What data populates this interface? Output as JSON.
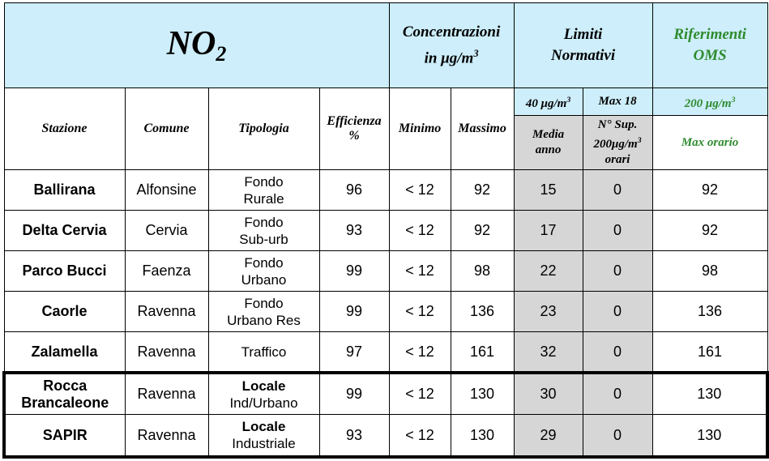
{
  "header": {
    "title_main": "NO",
    "title_sub": "2",
    "concentrazioni_line1": "Concentrazioni",
    "concentrazioni_line2": "in μg/m",
    "concentrazioni_sup": "3",
    "limiti_line1": "Limiti",
    "limiti_line2": "Normativi",
    "oms_line1": "Riferimenti",
    "oms_line2": "OMS",
    "limit1_value": "40 μg/m",
    "limit1_sup": "3",
    "limit2_value": "Max 18",
    "oms_value": "200 μg/m",
    "oms_sup": "3"
  },
  "columns": {
    "stazione": "Stazione",
    "comune": "Comune",
    "tipologia": "Tipologia",
    "efficienza_line1": "Efficienza",
    "efficienza_line2": "%",
    "minimo": "Minimo",
    "massimo": "Massimo",
    "media_line1": "Media",
    "media_line2": "anno",
    "sup_line1": "N° Sup.",
    "sup_line2": "200μg/m",
    "sup_sup": "3",
    "sup_line3": "orari",
    "max_orario": "Max orario"
  },
  "rows": [
    {
      "stazione_l1": "Ballirana",
      "stazione_l2": "",
      "comune": "Alfonsine",
      "tipologia_l1": "Fondo",
      "tipologia_l2": "Rurale",
      "efficienza": "96",
      "minimo": "< 12",
      "massimo": "92",
      "media": "15",
      "superamenti": "0",
      "max_orario": "92"
    },
    {
      "stazione_l1": "Delta Cervia",
      "stazione_l2": "",
      "comune": "Cervia",
      "tipologia_l1": "Fondo",
      "tipologia_l2": "Sub-urb",
      "efficienza": "93",
      "minimo": "< 12",
      "massimo": "92",
      "media": "17",
      "superamenti": "0",
      "max_orario": "92"
    },
    {
      "stazione_l1": "Parco Bucci",
      "stazione_l2": "",
      "comune": "Faenza",
      "tipologia_l1": "Fondo",
      "tipologia_l2": "Urbano",
      "efficienza": "99",
      "minimo": "< 12",
      "massimo": "98",
      "media": "22",
      "superamenti": "0",
      "max_orario": "98"
    },
    {
      "stazione_l1": "Caorle",
      "stazione_l2": "",
      "comune": "Ravenna",
      "tipologia_l1": "Fondo",
      "tipologia_l2": "Urbano Res",
      "efficienza": "99",
      "minimo": "< 12",
      "massimo": "136",
      "media": "23",
      "superamenti": "0",
      "max_orario": "136"
    },
    {
      "stazione_l1": "Zalamella",
      "stazione_l2": "",
      "comune": "Ravenna",
      "tipologia_l1": "Traffico",
      "tipologia_l2": "",
      "efficienza": "97",
      "minimo": "< 12",
      "massimo": "161",
      "media": "32",
      "superamenti": "0",
      "max_orario": "161"
    },
    {
      "stazione_l1": "Rocca",
      "stazione_l2": "Brancaleone",
      "comune": "Ravenna",
      "tipologia_l1": "Locale",
      "tipologia_l2": "Ind/Urbano",
      "efficienza": "99",
      "minimo": "< 12",
      "massimo": "130",
      "media": "30",
      "superamenti": "0",
      "max_orario": "130"
    },
    {
      "stazione_l1": "SAPIR",
      "stazione_l2": "",
      "comune": "Ravenna",
      "tipologia_l1": "Locale",
      "tipologia_l2": "Industriale",
      "efficienza": "93",
      "minimo": "< 12",
      "massimo": "130",
      "media": "29",
      "superamenti": "0",
      "max_orario": "130"
    }
  ]
}
